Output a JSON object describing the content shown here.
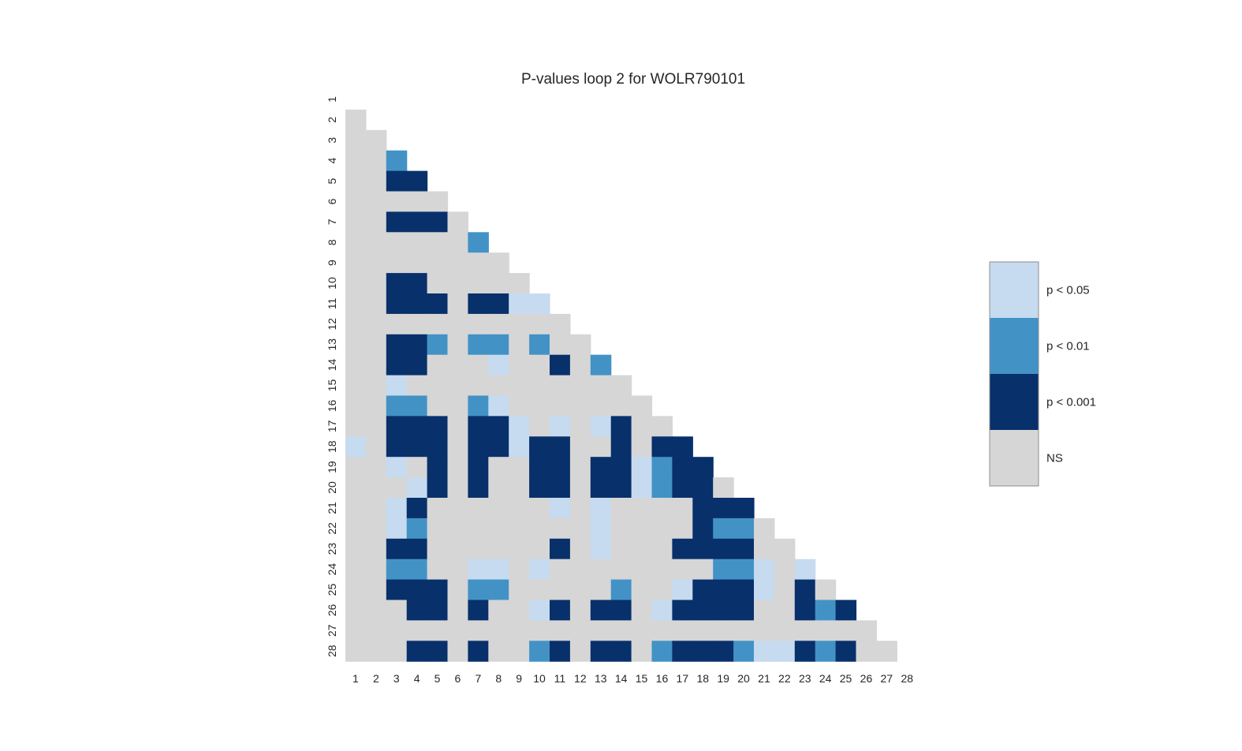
{
  "chart_data": {
    "type": "heatmap",
    "title": "P-values loop 2 for WOLR790101",
    "x_labels": [
      "1",
      "2",
      "3",
      "4",
      "5",
      "6",
      "7",
      "8",
      "9",
      "10",
      "11",
      "12",
      "13",
      "14",
      "15",
      "16",
      "17",
      "18",
      "19",
      "20",
      "21",
      "22",
      "23",
      "24",
      "25",
      "26",
      "27",
      "28"
    ],
    "y_labels": [
      "1",
      "2",
      "3",
      "4",
      "5",
      "6",
      "7",
      "8",
      "9",
      "10",
      "11",
      "12",
      "13",
      "14",
      "15",
      "16",
      "17",
      "18",
      "19",
      "20",
      "21",
      "22",
      "23",
      "24",
      "25",
      "26",
      "27",
      "28"
    ],
    "mask": "lower-triangle (row > column shown)",
    "categories": [
      {
        "code": 3,
        "label": "p < 0.05",
        "color": "#c6dbef"
      },
      {
        "code": 2,
        "label": "p < 0.01",
        "color": "#4292c6"
      },
      {
        "code": 1,
        "label": "p < 0.001",
        "color": "#08306b"
      },
      {
        "code": 0,
        "label": "NS",
        "color": "#d6d6d6"
      }
    ],
    "legend_position": "right",
    "grid": false,
    "rows": [
      [],
      [
        0
      ],
      [
        0,
        0
      ],
      [
        0,
        0,
        2
      ],
      [
        0,
        0,
        1,
        1
      ],
      [
        0,
        0,
        0,
        0,
        0
      ],
      [
        0,
        0,
        1,
        1,
        1,
        0
      ],
      [
        0,
        0,
        0,
        0,
        0,
        0,
        2
      ],
      [
        0,
        0,
        0,
        0,
        0,
        0,
        0,
        0
      ],
      [
        0,
        0,
        1,
        1,
        0,
        0,
        0,
        0,
        0
      ],
      [
        0,
        0,
        1,
        1,
        1,
        0,
        1,
        1,
        3,
        3
      ],
      [
        0,
        0,
        0,
        0,
        0,
        0,
        0,
        0,
        0,
        0,
        0
      ],
      [
        0,
        0,
        1,
        1,
        2,
        0,
        2,
        2,
        0,
        2,
        0,
        0
      ],
      [
        0,
        0,
        1,
        1,
        0,
        0,
        0,
        3,
        0,
        0,
        1,
        0,
        2
      ],
      [
        0,
        0,
        3,
        0,
        0,
        0,
        0,
        0,
        0,
        0,
        0,
        0,
        0,
        0
      ],
      [
        0,
        0,
        2,
        2,
        0,
        0,
        2,
        3,
        0,
        0,
        0,
        0,
        0,
        0,
        0
      ],
      [
        0,
        0,
        1,
        1,
        1,
        0,
        1,
        1,
        3,
        0,
        3,
        0,
        3,
        1,
        0,
        0
      ],
      [
        3,
        0,
        1,
        1,
        1,
        0,
        1,
        1,
        3,
        1,
        1,
        0,
        0,
        1,
        0,
        1,
        1
      ],
      [
        0,
        0,
        3,
        0,
        1,
        0,
        1,
        0,
        0,
        1,
        1,
        0,
        1,
        1,
        3,
        2,
        1,
        1
      ],
      [
        0,
        0,
        0,
        3,
        1,
        0,
        1,
        0,
        0,
        1,
        1,
        0,
        1,
        1,
        3,
        2,
        1,
        1,
        0
      ],
      [
        0,
        0,
        3,
        1,
        0,
        0,
        0,
        0,
        0,
        0,
        3,
        0,
        3,
        0,
        0,
        0,
        0,
        1,
        1,
        1
      ],
      [
        0,
        0,
        3,
        2,
        0,
        0,
        0,
        0,
        0,
        0,
        0,
        0,
        3,
        0,
        0,
        0,
        0,
        1,
        2,
        2,
        0
      ],
      [
        0,
        0,
        1,
        1,
        0,
        0,
        0,
        0,
        0,
        0,
        1,
        0,
        3,
        0,
        0,
        0,
        1,
        1,
        1,
        1,
        0,
        0
      ],
      [
        0,
        0,
        2,
        2,
        0,
        0,
        3,
        3,
        0,
        3,
        0,
        0,
        0,
        0,
        0,
        0,
        0,
        0,
        2,
        2,
        3,
        0,
        3
      ],
      [
        0,
        0,
        1,
        1,
        1,
        0,
        2,
        2,
        0,
        0,
        0,
        0,
        0,
        2,
        0,
        0,
        3,
        1,
        1,
        1,
        3,
        0,
        1,
        0
      ],
      [
        0,
        0,
        0,
        1,
        1,
        0,
        1,
        0,
        0,
        3,
        1,
        0,
        1,
        1,
        0,
        3,
        1,
        1,
        1,
        1,
        0,
        0,
        1,
        2,
        1
      ],
      [
        0,
        0,
        0,
        0,
        0,
        0,
        0,
        0,
        0,
        0,
        0,
        0,
        0,
        0,
        0,
        0,
        0,
        0,
        0,
        0,
        0,
        0,
        0,
        0,
        0,
        0
      ],
      [
        0,
        0,
        0,
        1,
        1,
        0,
        1,
        0,
        0,
        2,
        1,
        0,
        1,
        1,
        0,
        2,
        1,
        1,
        1,
        2,
        3,
        3,
        1,
        2,
        1,
        0,
        0
      ]
    ]
  }
}
